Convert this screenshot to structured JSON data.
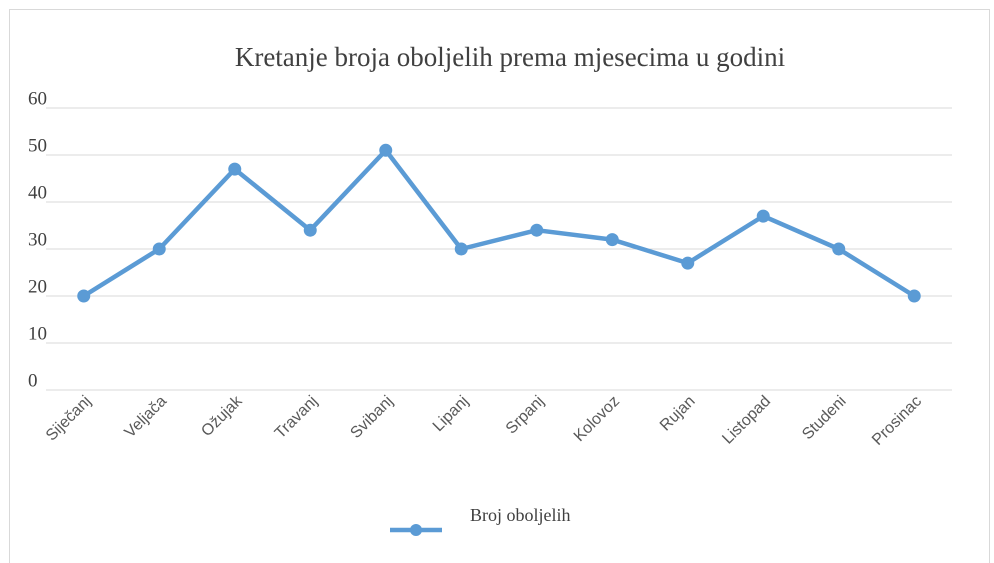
{
  "chart_data": {
    "type": "line",
    "title": "Kretanje broja oboljelih prema mjesecima u godini",
    "categories": [
      "Siječanj",
      "Veljača",
      "Ožujak",
      "Travanj",
      "Svibanj",
      "Lipanj",
      "Srpanj",
      "Kolovoz",
      "Rujan",
      "Listopad",
      "Studeni",
      "Prosinac"
    ],
    "series": [
      {
        "name": "Broj oboljelih",
        "color": "#5b9bd5",
        "values": [
          20,
          30,
          47,
          34,
          51,
          30,
          34,
          32,
          27,
          37,
          30,
          20
        ]
      }
    ],
    "ylim": [
      0,
      60
    ],
    "yticks": [
      0,
      10,
      20,
      30,
      40,
      50,
      60
    ],
    "grid": true,
    "legend": "bottom"
  }
}
